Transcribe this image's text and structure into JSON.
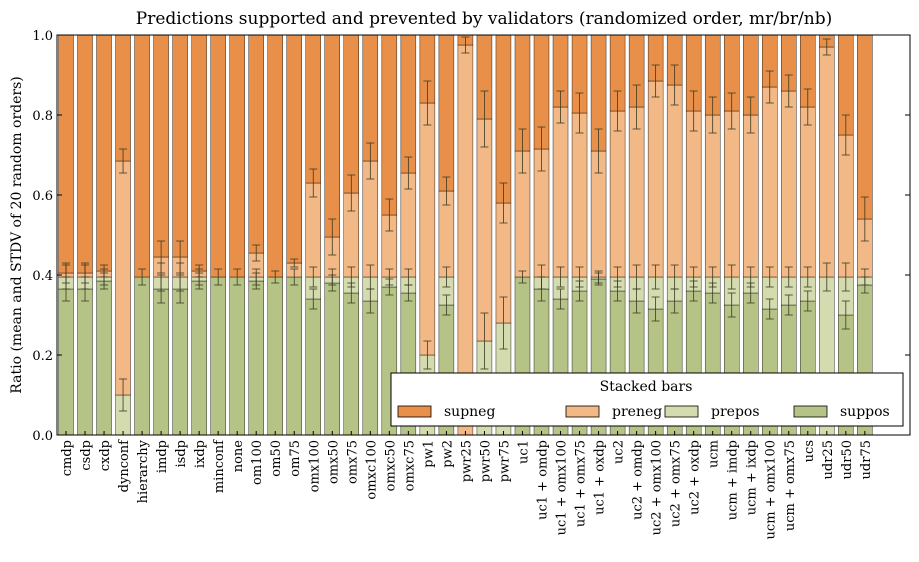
{
  "chart_data": {
    "type": "bar",
    "stacked": true,
    "title": "Predictions supported and prevented by validators (randomized order, mr/br/nb)",
    "xlabel": "",
    "ylabel": "Ratio (mean and STDV of 20 random orders)",
    "ylim": [
      0,
      1.0
    ],
    "yticks": [
      "0.0",
      "0.2",
      "0.4",
      "0.6",
      "0.8",
      "1.0"
    ],
    "grid": false,
    "legend": {
      "title": "Stacked bars",
      "placement": "lower-right"
    },
    "categories": [
      "cmdp",
      "csdp",
      "cxdp",
      "dynconf",
      "hierarchy",
      "imdp",
      "isdp",
      "ixdp",
      "minconf",
      "none",
      "om100",
      "om50",
      "om75",
      "omx100",
      "omx50",
      "omx75",
      "omxc100",
      "omxc50",
      "omxc75",
      "pw1",
      "pw2",
      "pwr25",
      "pwr50",
      "pwr75",
      "uc1",
      "uc1 + omdp",
      "uc1 + omx100",
      "uc1 + omx75",
      "uc1 + oxdp",
      "uc2",
      "uc2 + omdp",
      "uc2 + omx100",
      "uc2 + omx75",
      "uc2 + oxdp",
      "ucm",
      "ucm + imdp",
      "ucm + ixdp",
      "ucm + omx100",
      "ucm + omx75",
      "ucs",
      "udr25",
      "udr50",
      "udr75"
    ],
    "series": [
      {
        "name": "suppos",
        "color": "#b5c486",
        "values": [
          0.365,
          0.365,
          0.385,
          0.0,
          0.395,
          0.365,
          0.365,
          0.385,
          0.395,
          0.395,
          0.385,
          0.395,
          0.395,
          0.34,
          0.38,
          0.355,
          0.335,
          0.37,
          0.355,
          0.0,
          0.325,
          0.0,
          0.0,
          0.0,
          0.395,
          0.365,
          0.34,
          0.36,
          0.39,
          0.36,
          0.335,
          0.315,
          0.335,
          0.36,
          0.355,
          0.325,
          0.355,
          0.315,
          0.325,
          0.335,
          0.0,
          0.3,
          0.375
        ],
        "errors": [
          0.03,
          0.03,
          0.02,
          0.0,
          0.02,
          0.035,
          0.035,
          0.02,
          0.02,
          0.02,
          0.02,
          0.015,
          0.02,
          0.025,
          0.02,
          0.025,
          0.03,
          0.02,
          0.02,
          0.0,
          0.025,
          0.0,
          0.0,
          0.0,
          0.015,
          0.03,
          0.025,
          0.025,
          0.015,
          0.025,
          0.03,
          0.03,
          0.03,
          0.025,
          0.025,
          0.03,
          0.025,
          0.025,
          0.025,
          0.025,
          0.0,
          0.035,
          0.02
        ]
      },
      {
        "name": "prepos",
        "color": "#d4dbaf",
        "values": [
          0.03,
          0.03,
          0.01,
          0.1,
          0.0,
          0.03,
          0.03,
          0.01,
          0.0,
          0.0,
          0.01,
          0.0,
          0.0,
          0.055,
          0.015,
          0.04,
          0.06,
          0.025,
          0.04,
          0.2,
          0.07,
          0.0,
          0.235,
          0.28,
          0.0,
          0.03,
          0.055,
          0.035,
          0.005,
          0.035,
          0.06,
          0.08,
          0.06,
          0.035,
          0.04,
          0.07,
          0.04,
          0.08,
          0.07,
          0.06,
          0.395,
          0.095,
          0.02
        ],
        "errors": [
          0.03,
          0.03,
          0.02,
          0.04,
          0.0,
          0.035,
          0.035,
          0.02,
          0.0,
          0.0,
          0.02,
          0.0,
          0.0,
          0.025,
          0.02,
          0.025,
          0.03,
          0.02,
          0.02,
          0.035,
          0.025,
          0.0,
          0.07,
          0.065,
          0.0,
          0.03,
          0.025,
          0.025,
          0.015,
          0.025,
          0.03,
          0.03,
          0.03,
          0.025,
          0.025,
          0.03,
          0.025,
          0.025,
          0.025,
          0.025,
          0.035,
          0.035,
          0.02
        ]
      },
      {
        "name": "preneg",
        "color": "#f2b886",
        "values": [
          0.01,
          0.01,
          0.015,
          0.585,
          0.0,
          0.05,
          0.05,
          0.015,
          0.0,
          0.0,
          0.06,
          0.0,
          0.035,
          0.235,
          0.1,
          0.21,
          0.29,
          0.155,
          0.26,
          0.63,
          0.215,
          0.975,
          0.555,
          0.3,
          0.315,
          0.32,
          0.425,
          0.41,
          0.315,
          0.415,
          0.425,
          0.49,
          0.48,
          0.415,
          0.405,
          0.415,
          0.405,
          0.475,
          0.465,
          0.425,
          0.575,
          0.355,
          0.145
        ],
        "errors": [
          0.025,
          0.025,
          0.015,
          0.03,
          0.0,
          0.04,
          0.04,
          0.015,
          0.0,
          0.0,
          0.02,
          0.0,
          0.01,
          0.035,
          0.045,
          0.045,
          0.045,
          0.04,
          0.04,
          0.055,
          0.035,
          0.02,
          0.07,
          0.05,
          0.055,
          0.055,
          0.04,
          0.05,
          0.055,
          0.05,
          0.055,
          0.04,
          0.05,
          0.05,
          0.045,
          0.045,
          0.045,
          0.04,
          0.04,
          0.045,
          0.02,
          0.05,
          0.055
        ]
      },
      {
        "name": "supneg",
        "color": "#e8904a",
        "values": [
          0.595,
          0.595,
          0.59,
          0.315,
          0.605,
          0.555,
          0.555,
          0.59,
          0.605,
          0.605,
          0.545,
          0.605,
          0.57,
          0.37,
          0.505,
          0.395,
          0.315,
          0.45,
          0.345,
          0.17,
          0.39,
          0.025,
          0.21,
          0.42,
          0.29,
          0.285,
          0.18,
          0.195,
          0.29,
          0.19,
          0.18,
          0.115,
          0.125,
          0.19,
          0.2,
          0.19,
          0.2,
          0.13,
          0.14,
          0.18,
          0.03,
          0.25,
          0.46
        ]
      }
    ]
  }
}
